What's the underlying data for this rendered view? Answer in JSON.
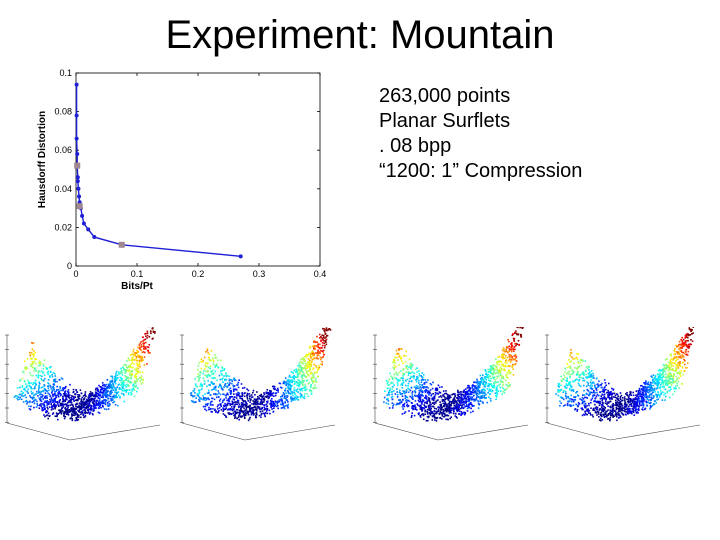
{
  "slide": {
    "title": "Experiment:  Mountain"
  },
  "bullets": [
    "263,000 points",
    "Planar Surflets",
    ". 08 bpp",
    "“1200: 1” Compression"
  ],
  "chart_data": {
    "type": "line",
    "title": "",
    "xlabel": "Bits/Pt",
    "ylabel": "Hausdorff Distortion",
    "xlim": [
      0,
      0.4
    ],
    "ylim": [
      0,
      0.1
    ],
    "x_ticks": [
      "0",
      "0.1",
      "0.2",
      "0.3",
      "0.4"
    ],
    "y_ticks": [
      "0",
      "0.02",
      "0.04",
      "0.06",
      "0.08",
      "0.1"
    ],
    "grid": false,
    "series": [
      {
        "color": "#1f1fd6",
        "x": [
          0.001,
          0.001,
          0.001,
          0.002,
          0.002,
          0.003,
          0.003,
          0.004,
          0.005,
          0.006,
          0.008,
          0.01,
          0.013,
          0.02,
          0.03,
          0.075,
          0.27
        ],
        "y": [
          0.094,
          0.078,
          0.066,
          0.058,
          0.052,
          0.046,
          0.044,
          0.04,
          0.036,
          0.033,
          0.03,
          0.026,
          0.022,
          0.019,
          0.015,
          0.011,
          0.005
        ]
      }
    ],
    "highlighted_points": {
      "color": "#a08890",
      "x": [
        0.002,
        0.006,
        0.075
      ],
      "y": [
        0.052,
        0.031,
        0.011
      ]
    }
  },
  "surface_plots": [
    {
      "id": "surface-plot-1",
      "variant": 0
    },
    {
      "id": "surface-plot-2",
      "variant": 1
    },
    {
      "id": "surface-plot-3",
      "variant": 2
    },
    {
      "id": "surface-plot-4",
      "variant": 3
    }
  ]
}
